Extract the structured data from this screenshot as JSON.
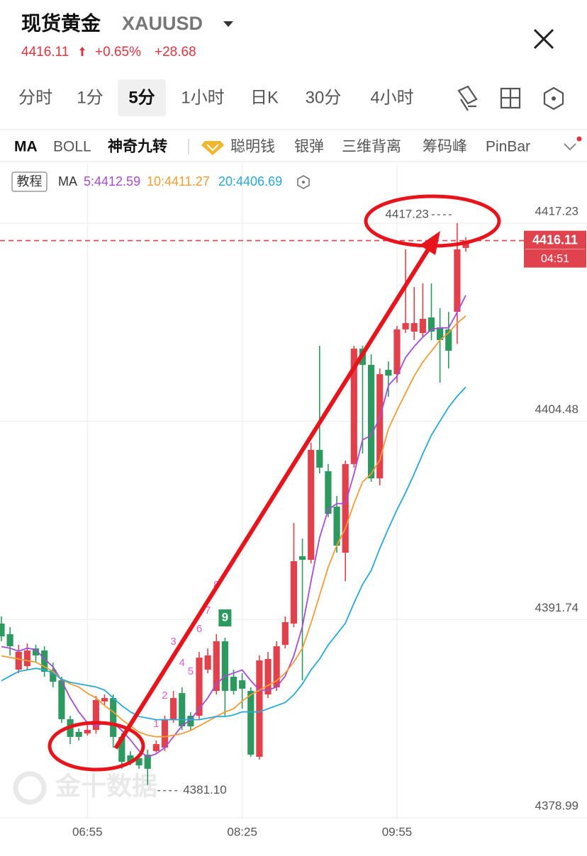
{
  "header": {
    "title": "现货黄金",
    "symbol": "XAUUSD",
    "price": "4416.11",
    "change_pct": "+0.65%",
    "change": "+28.68"
  },
  "tabs": [
    {
      "label": "分时"
    },
    {
      "label": "1分"
    },
    {
      "label": "5分",
      "selected": true
    },
    {
      "label": "1小时"
    },
    {
      "label": "日K"
    },
    {
      "label": "30分"
    },
    {
      "label": "4小时"
    }
  ],
  "indicators": [
    {
      "label": "MA",
      "active": true
    },
    {
      "label": "BOLL"
    },
    {
      "label": "神奇九转",
      "active": true
    },
    {
      "label": "聪明钱"
    },
    {
      "label": "银弹"
    },
    {
      "label": "三维背离"
    },
    {
      "label": "筹码峰"
    },
    {
      "label": "PinBar"
    }
  ],
  "tutorial": "教程",
  "chart_data": {
    "type": "candlestick",
    "ma_title": "MA",
    "categories": [
      null,
      null,
      null,
      null,
      null,
      null,
      null,
      null,
      null,
      null,
      "06:55",
      null,
      null,
      null,
      null,
      null,
      null,
      null,
      null,
      null,
      null,
      null,
      null,
      null,
      null,
      null,
      null,
      null,
      "08:25",
      null,
      null,
      null,
      null,
      null,
      null,
      null,
      null,
      null,
      null,
      null,
      null,
      null,
      null,
      null,
      null,
      null,
      "09:55",
      null,
      null,
      null,
      null,
      null,
      null,
      null,
      null
    ],
    "open": [
      4391.48,
      4390.8,
      4388.52,
      4388.74,
      4389.88,
      4389.75,
      4388.52,
      4387.83,
      4385.33,
      4384.51,
      4384.41,
      4384.64,
      4386.47,
      4386.69,
      4384.19,
      4383.0,
      4382.82,
      4383.05,
      4383.28,
      4383.5,
      4385.33,
      4387.01,
      4385.55,
      4385.55,
      4388.52,
      4387.15,
      4390.34,
      4388.06,
      4387.83,
      4387.15,
      4382.91,
      4386.92,
      4387.38,
      4390.11,
      4391.48,
      4395.81,
      4395.58,
      4402.65,
      4401.28,
      4399.0,
      4396.04,
      4401.74,
      4409.16,
      4408.12,
      4400.82,
      4407.8,
      4407.52,
      4410.4,
      4410.26,
      4410.17,
      4411.17,
      4410.53,
      4410.4,
      4411.53,
      4415.64
    ],
    "high": [
      4391.94,
      4391.25,
      4390.11,
      4390.2,
      4390.11,
      4390.02,
      4388.97,
      4388.06,
      4385.55,
      4384.73,
      4385.1,
      4386.83,
      4386.92,
      4386.92,
      4384.41,
      4383.28,
      4383.09,
      4383.37,
      4383.96,
      4385.55,
      4387.15,
      4387.38,
      4385.78,
      4389.66,
      4389.88,
      4390.8,
      4390.57,
      4388.52,
      4388.29,
      4387.38,
      4389.43,
      4389.66,
      4390.34,
      4391.94,
      4397.95,
      4396.95,
      4403.1,
      4409.35,
      4401.74,
      4399.68,
      4401.96,
      4409.35,
      4409.35,
      4408.8,
      4407.89,
      4408.34,
      4410.62,
      4415.55,
      4413.13,
      4413.36,
      4413.36,
      4411.76,
      4411.53,
      4417.23,
      4416.32
    ],
    "low": [
      4390.34,
      4389.43,
      4388.29,
      4388.52,
      4388.97,
      4388.06,
      4387.38,
      4385.1,
      4383.73,
      4383.96,
      4384.28,
      4384.41,
      4386.24,
      4383.5,
      4382.14,
      4382.36,
      4382.14,
      4381.1,
      4383.18,
      4383.28,
      4385.1,
      4384.64,
      4384.64,
      4385.33,
      4388.29,
      4386.92,
      4385.55,
      4386.92,
      4386.01,
      4382.91,
      4382.73,
      4386.69,
      4387.15,
      4389.88,
      4391.25,
      4387.83,
      4395.35,
      4401.14,
      4398.32,
      4396.04,
      4394.21,
      4401.51,
      4402.42,
      4400.6,
      4400.37,
      4406.07,
      4406.98,
      4410.17,
      4409.71,
      4409.94,
      4409.71,
      4406.98,
      4407.89,
      4409.48,
      4415.41
    ],
    "close": [
      4390.66,
      4390.02,
      4389.66,
      4389.75,
      4389.43,
      4388.38,
      4387.74,
      4385.33,
      4384.19,
      4384.19,
      4384.64,
      4386.56,
      4386.69,
      4384.19,
      4382.59,
      4382.59,
      4382.36,
      4382.14,
      4383.73,
      4385.33,
      4386.69,
      4384.87,
      4384.87,
      4389.29,
      4389.43,
      4390.34,
      4387.15,
      4387.15,
      4387.29,
      4383.05,
      4389.11,
      4389.2,
      4390.02,
      4391.57,
      4395.49,
      4395.58,
      4402.65,
      4401.51,
      4398.54,
      4396.49,
      4401.74,
      4409.16,
      4408.12,
      4400.82,
      4407.52,
      4407.43,
      4410.4,
      4410.81,
      4410.81,
      4411.08,
      4410.26,
      4409.71,
      4409.03,
      4415.55,
      4416.11
    ],
    "ma_series": [
      {
        "label": "5:4412.59",
        "color": "#a64bd6",
        "values": [
          4390.0,
          4389.9,
          4389.7,
          4389.9,
          4389.8,
          4389.2,
          4388.7,
          4387.8,
          4386.7,
          4385.8,
          4385.1,
          4384.9,
          4385.1,
          4385.1,
          4384.6,
          4384.0,
          4383.3,
          4382.9,
          4383.1,
          4383.5,
          4384.2,
          4384.9,
          4385.3,
          4386.0,
          4386.7,
          4387.6,
          4388.1,
          4388.3,
          4388.5,
          4387.8,
          4387.2,
          4387.2,
          4387.4,
          4388.1,
          4389.4,
          4391.3,
          4394.2,
          4397.0,
          4398.8,
          4399.2,
          4399.2,
          4401.1,
          4403.3,
          4403.6,
          4404.7,
          4406.8,
          4407.4,
          4408.6,
          4409.3,
          4409.9,
          4410.4,
          4410.5,
          4410.5,
          4411.5,
          4412.59
        ]
      },
      {
        "label": "10:4411.27",
        "color": "#f39c34",
        "values": [
          4389.4,
          4389.3,
          4389.2,
          4389.1,
          4389.0,
          4388.7,
          4388.4,
          4387.9,
          4387.6,
          4387.4,
          4387.0,
          4386.7,
          4386.2,
          4385.8,
          4385.3,
          4384.9,
          4384.5,
          4384.3,
          4384.2,
          4384.2,
          4384.3,
          4384.4,
          4384.6,
          4384.9,
          4385.2,
          4385.5,
          4385.8,
          4386.0,
          4386.5,
          4386.9,
          4387.2,
          4387.5,
          4387.8,
          4388.3,
          4389.0,
          4389.9,
          4391.5,
          4393.3,
          4395.1,
          4396.5,
          4397.6,
          4399.2,
          4400.6,
          4401.1,
          4402.0,
          4404.0,
          4405.2,
          4406.3,
          4407.4,
          4408.3,
          4409.0,
          4409.7,
          4410.2,
          4410.8,
          4411.27
        ]
      },
      {
        "label": "20:4406.69",
        "color": "#27a9d8",
        "values": [
          4387.8,
          4388.1,
          4388.4,
          4388.5,
          4388.6,
          4388.5,
          4388.3,
          4387.9,
          4387.7,
          4387.6,
          4387.5,
          4387.4,
          4387.2,
          4386.7,
          4386.2,
          4385.8,
          4385.5,
          4385.4,
          4385.3,
          4385.3,
          4385.3,
          4385.3,
          4385.3,
          4385.3,
          4385.4,
          4385.5,
          4385.5,
          4385.6,
          4385.8,
          4385.8,
          4385.8,
          4386.0,
          4386.2,
          4386.4,
          4386.9,
          4387.6,
          4388.5,
          4389.2,
          4390.1,
          4390.8,
          4391.5,
          4392.8,
          4394.0,
          4394.9,
          4396.3,
          4397.6,
          4398.8,
          4399.9,
          4401.1,
          4402.4,
          4403.6,
          4404.5,
          4405.4,
          4406.1,
          4406.69
        ]
      }
    ],
    "ylim": [
      4378.9,
      4420.9
    ],
    "yticks": [
      4378.99,
      4391.74,
      4404.48,
      4417.23
    ],
    "grid": true,
    "up_color": "#e2414c",
    "down_color": "#2c9a5e",
    "high_marker": 4417.23,
    "low_marker": {
      "value": 4381.1,
      "label": "4381.10"
    },
    "last_price": 4416.11,
    "countdown": "04:51",
    "td_sequence": [
      "1",
      "2",
      "3",
      "4",
      "5",
      "6",
      "7",
      "8",
      "9"
    ],
    "watermark": "金十数据"
  }
}
